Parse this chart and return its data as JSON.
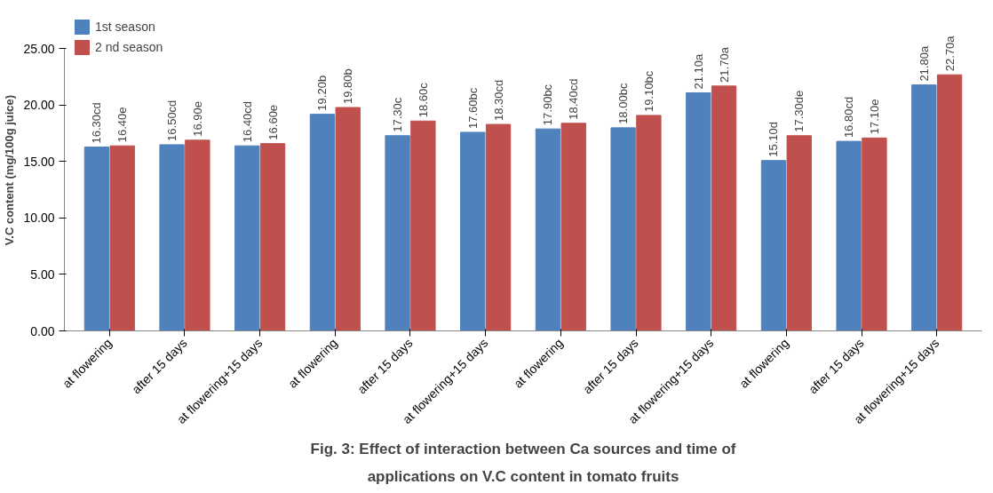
{
  "chart_data": {
    "type": "bar",
    "title": "Fig. 3: Effect of interaction between Ca sources and time of applications on V.C content in tomato fruits",
    "ylabel": "V.C content (mg/100g juice)",
    "categories": [
      "at flowering",
      "after 15 days",
      "at flowering+15 days",
      "at flowering",
      "after 15 days",
      "at flowering+15 days",
      "at flowering",
      "after 15 days",
      "at flowering+15 days",
      "at flowering",
      "after 15 days",
      "at flowering+15 days"
    ],
    "series": [
      {
        "name": "1st season",
        "color": "#4f81bd",
        "values": [
          16.3,
          16.5,
          16.4,
          19.2,
          17.3,
          17.6,
          17.9,
          18.0,
          21.1,
          15.1,
          16.8,
          21.8
        ],
        "value_labels": [
          "16.30cd",
          "16.50cd",
          "16.40cd",
          "19.20b",
          "17.30c",
          "17.60bc",
          "17.90bc",
          "18.00bc",
          "21.10a",
          "15.10d",
          "16.80cd",
          "21.80a"
        ]
      },
      {
        "name": "2 nd season",
        "color": "#c0504d",
        "values": [
          16.4,
          16.9,
          16.6,
          19.8,
          18.6,
          18.3,
          18.4,
          19.1,
          21.7,
          17.3,
          17.1,
          22.7
        ],
        "value_labels": [
          "16.40e",
          "16.90e",
          "16.60e",
          "19.80b",
          "18.60c",
          "18.30cd",
          "18.40cd",
          "19.10bc",
          "21.70a",
          "17.30de",
          "17.10e",
          "22.70a"
        ]
      }
    ],
    "ylim": [
      0,
      25
    ],
    "yticks": [
      {
        "value": 0,
        "label": "0.00"
      },
      {
        "value": 5,
        "label": "5.00"
      },
      {
        "value": 10,
        "label": "10.00"
      },
      {
        "value": 15,
        "label": "15.00"
      },
      {
        "value": 20,
        "label": "20.00"
      },
      {
        "value": 25,
        "label": "25.00"
      }
    ],
    "grid": false,
    "legend": "top left"
  }
}
